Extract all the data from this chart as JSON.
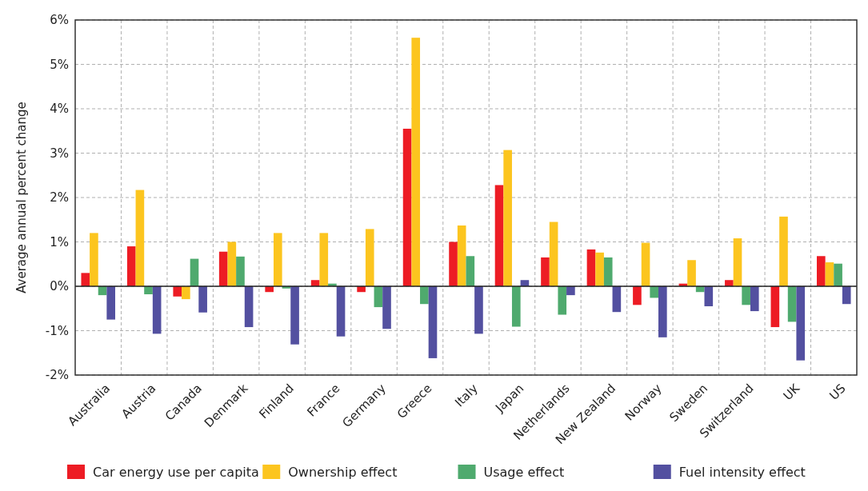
{
  "chart_data": {
    "type": "bar",
    "ylabel": "Average annual percent change",
    "categories": [
      "Australia",
      "Austria",
      "Canada",
      "Denmark",
      "Finland",
      "France",
      "Germany",
      "Greece",
      "Italy",
      "Japan",
      "Netherlands",
      "New Zealand",
      "Norway",
      "Sweden",
      "Switzerland",
      "UK",
      "US"
    ],
    "series": [
      {
        "name": "Car energy use per capita",
        "color": "#ed1c24",
        "values": [
          0.3,
          0.9,
          -0.23,
          0.78,
          -0.13,
          0.14,
          -0.13,
          3.55,
          1.0,
          2.28,
          0.65,
          0.83,
          -0.42,
          0.06,
          0.14,
          -0.92,
          0.68
        ]
      },
      {
        "name": "Ownership effect",
        "color": "#fcc51f",
        "values": [
          1.2,
          2.17,
          -0.29,
          1.0,
          1.2,
          1.2,
          1.29,
          5.6,
          1.37,
          3.07,
          1.45,
          0.76,
          0.98,
          0.59,
          1.08,
          1.57,
          0.54
        ]
      },
      {
        "name": "Usage effect",
        "color": "#4faa6e",
        "values": [
          -0.2,
          -0.18,
          0.62,
          0.67,
          -0.05,
          0.06,
          -0.47,
          -0.4,
          0.68,
          -0.91,
          -0.64,
          0.65,
          -0.26,
          -0.13,
          -0.42,
          -0.8,
          0.51
        ]
      },
      {
        "name": "Fuel intensity effect",
        "color": "#5350a0",
        "values": [
          -0.75,
          -1.07,
          -0.59,
          -0.92,
          -1.31,
          -1.13,
          -0.96,
          -1.62,
          -1.07,
          0.14,
          -0.2,
          -0.58,
          -1.15,
          -0.45,
          -0.56,
          -1.67,
          -0.4
        ]
      }
    ],
    "ylim": [
      -2,
      6
    ],
    "yticks": [
      {
        "value": -2,
        "label": "-2%"
      },
      {
        "value": -1,
        "label": "-1%"
      },
      {
        "value": 0,
        "label": "0%"
      },
      {
        "value": 1,
        "label": "1%"
      },
      {
        "value": 2,
        "label": "2%"
      },
      {
        "value": 3,
        "label": "3%"
      },
      {
        "value": 4,
        "label": "4%"
      },
      {
        "value": 5,
        "label": "5%"
      },
      {
        "value": 6,
        "label": "6%"
      }
    ],
    "grid": true,
    "legend": "bottom"
  }
}
